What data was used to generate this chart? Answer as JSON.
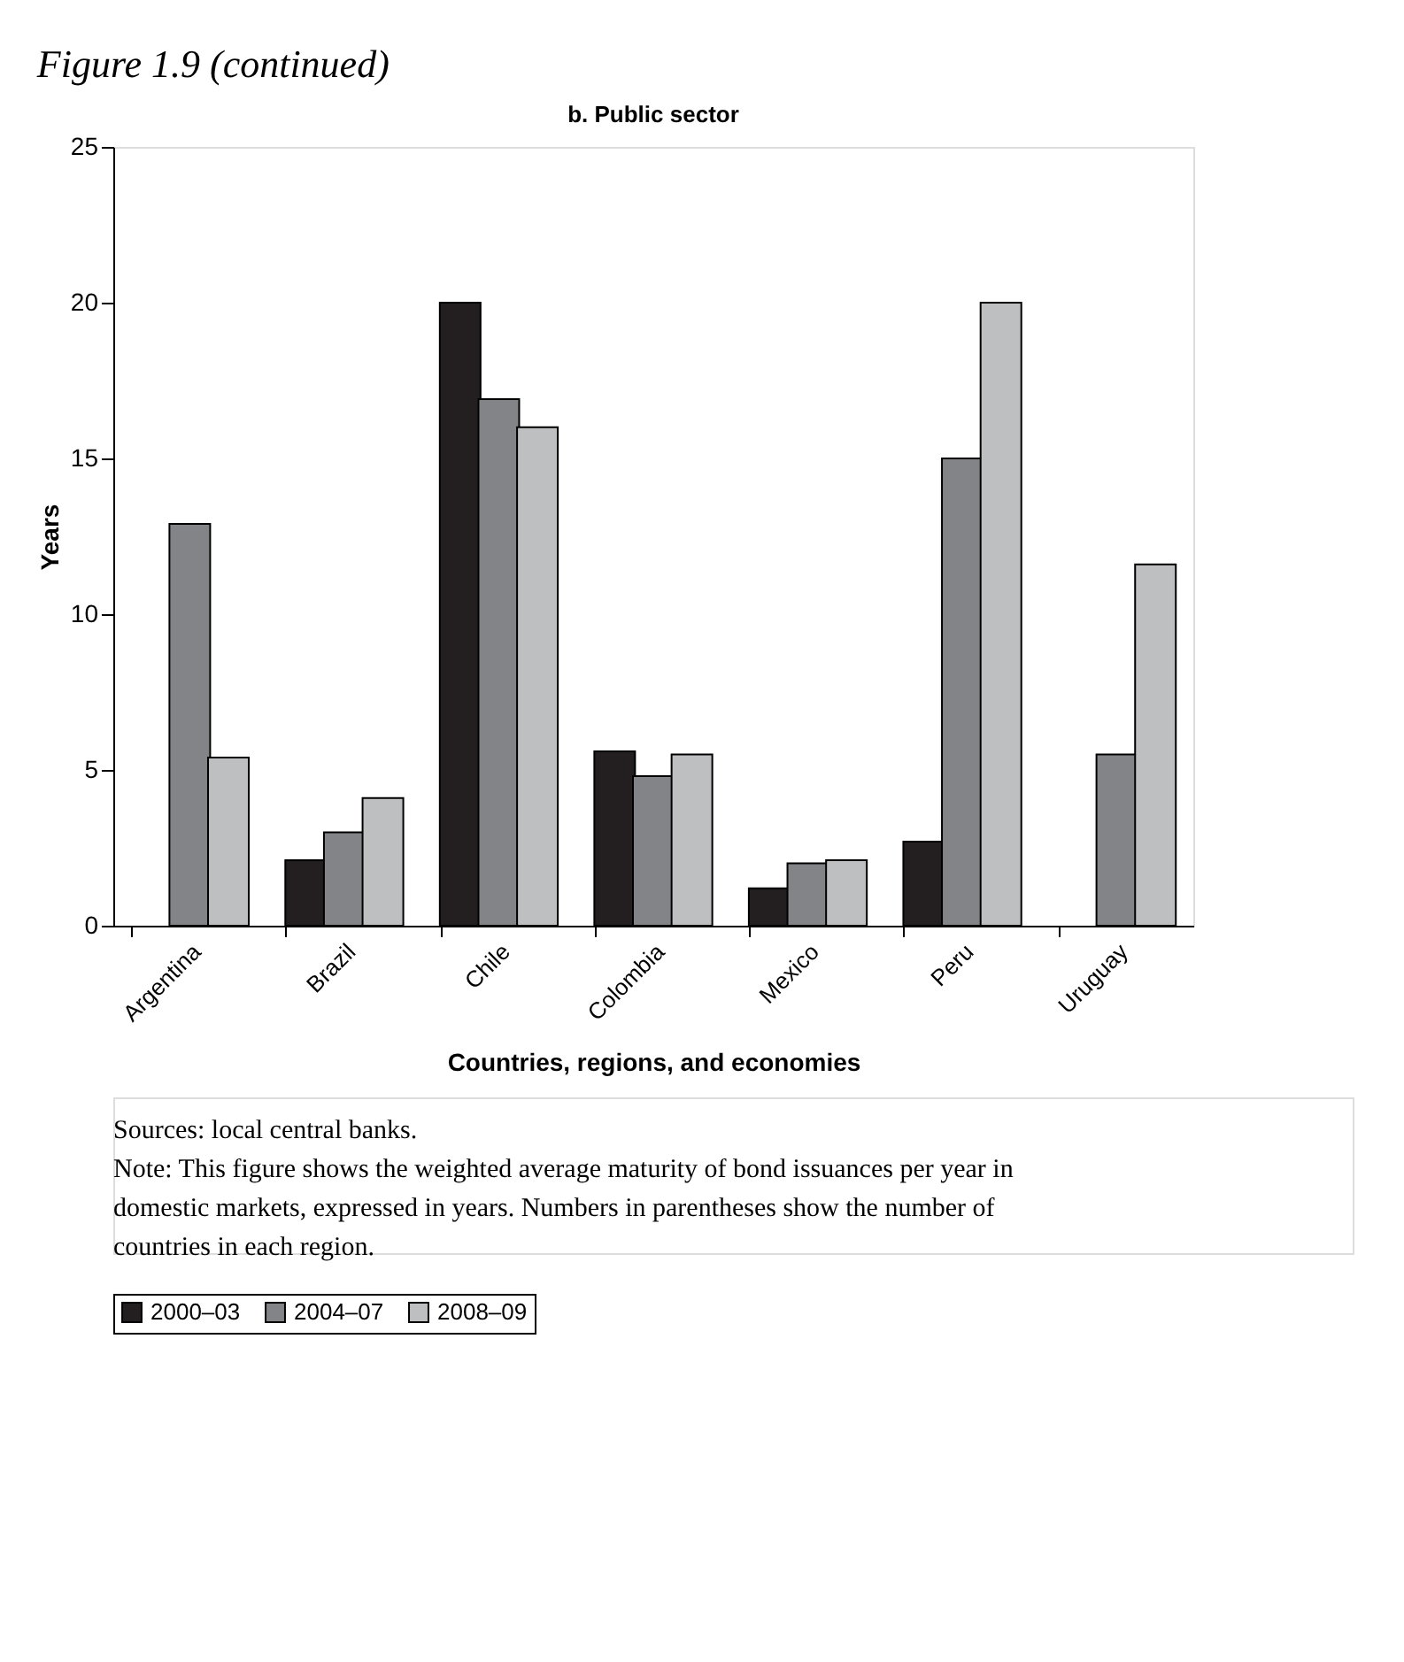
{
  "chart_data": {
    "type": "bar",
    "title": "Figure 1.9 (continued)",
    "subtitle": "b. Public sector",
    "xlabel": "Countries, regions, and economies",
    "ylabel": "Years",
    "categories": [
      "Argentina",
      "Brazil",
      "Chile",
      "Colombia",
      "Mexico",
      "Peru",
      "Uruguay"
    ],
    "series": [
      {
        "name": "2000–03",
        "color": "#231f20",
        "values": [
          null,
          2.1,
          20.0,
          5.6,
          1.2,
          2.7,
          null
        ]
      },
      {
        "name": "2004–07",
        "color": "#838488",
        "values": [
          12.9,
          3.0,
          16.9,
          4.8,
          2.0,
          15.0,
          5.5
        ]
      },
      {
        "name": "2008–09",
        "color": "#bebfc1",
        "values": [
          5.4,
          4.1,
          16.0,
          5.5,
          2.1,
          20.0,
          11.6
        ]
      }
    ],
    "ylim": [
      0,
      25
    ],
    "yticks": [
      0,
      5,
      10,
      15,
      20,
      25
    ],
    "grid": false,
    "legend": "bottom",
    "annotations": [
      "Sources: local central banks.",
      "Note: This figure shows the weighted average maturity of bond issuances per year in domestic markets, expressed in years. Numbers in parentheses show the number of countries in each region."
    ]
  }
}
